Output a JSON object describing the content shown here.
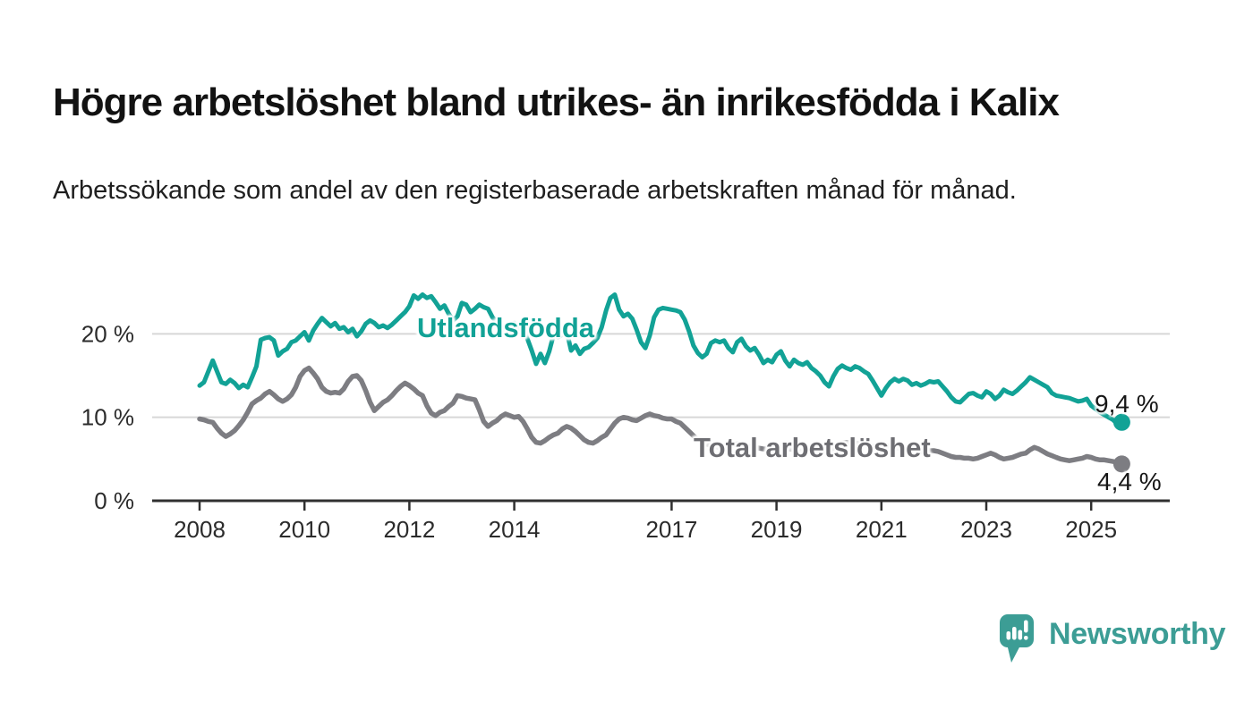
{
  "title": "Högre arbetslöshet bland utrikes- än inrikesfödda i Kalix",
  "subtitle": "Arbetssökande som andel av den registerbaserade arbetskraften månad för månad.",
  "branding": {
    "name": "Newsworthy",
    "icon": "bar-chart-speech-bubble",
    "color": "#3C9D95"
  },
  "colors": {
    "accent_teal": "#12A296",
    "series_gray": "#7D7D82",
    "gray_label": "#6E6E73",
    "axis": "#303030",
    "grid": "#D7D7D7",
    "title_text": "#121212"
  },
  "chart_data": {
    "type": "line",
    "title": "Högre arbetslöshet bland utrikes- än inrikesfödda i Kalix",
    "subtitle": "Arbetssökande som andel av den registerbaserade arbetskraften månad för månad.",
    "unit": "%",
    "grid": "horizontal",
    "x_axis": {
      "ticks": [
        2008,
        2010,
        2012,
        2014,
        2017,
        2019,
        2021,
        2023,
        2025
      ],
      "range": [
        2007.6,
        2026.4
      ]
    },
    "y_axis": {
      "ticks": [
        {
          "value": 0,
          "label": "0 %"
        },
        {
          "value": 10,
          "label": "10 %"
        },
        {
          "value": 20,
          "label": "20 %"
        }
      ],
      "range": [
        0,
        26
      ]
    },
    "series": [
      {
        "name": "Utlandsfödda",
        "color": "#12A296",
        "line_width": 5,
        "end_label": "9,4 %",
        "end_value": 9.4,
        "start_year": 2008,
        "start_month": 1,
        "frequency": "monthly",
        "values": [
          13.8,
          14.2,
          15.5,
          16.8,
          15.5,
          14.2,
          14.0,
          14.5,
          14.1,
          13.5,
          13.9,
          13.6,
          14.8,
          16.1,
          19.3,
          19.5,
          19.6,
          19.2,
          17.4,
          17.9,
          18.2,
          19.0,
          19.2,
          19.7,
          20.2,
          19.2,
          20.4,
          21.2,
          21.9,
          21.4,
          20.9,
          21.3,
          20.6,
          20.8,
          20.2,
          20.6,
          19.7,
          20.3,
          21.2,
          21.6,
          21.3,
          20.8,
          21.0,
          20.7,
          21.1,
          21.6,
          22.1,
          22.6,
          23.3,
          24.6,
          24.2,
          24.7,
          24.3,
          24.5,
          23.8,
          23.0,
          23.4,
          22.4,
          21.6,
          22.1,
          23.7,
          23.5,
          22.6,
          23.0,
          23.5,
          23.2,
          23.0,
          22.0,
          21.4,
          20.4,
          20.8,
          21.1,
          21.3,
          20.6,
          21.0,
          19.4,
          18.0,
          16.4,
          17.6,
          16.5,
          17.9,
          19.9,
          19.6,
          19.9,
          20.3,
          18.0,
          18.6,
          17.6,
          18.2,
          18.4,
          18.9,
          19.5,
          20.8,
          22.8,
          24.3,
          24.7,
          22.9,
          22.1,
          22.4,
          21.8,
          20.5,
          19.0,
          18.3,
          19.8,
          22.0,
          22.9,
          23.1,
          23.0,
          22.9,
          22.8,
          22.6,
          21.7,
          20.3,
          18.6,
          17.7,
          17.2,
          17.6,
          18.9,
          19.2,
          19.0,
          19.2,
          18.3,
          17.8,
          19.0,
          19.4,
          18.5,
          18.0,
          18.3,
          17.5,
          16.5,
          16.9,
          16.6,
          17.5,
          17.9,
          16.8,
          16.1,
          16.9,
          16.5,
          16.3,
          16.6,
          15.9,
          15.5,
          15.0,
          14.2,
          13.7,
          14.9,
          15.8,
          16.2,
          15.9,
          15.7,
          16.1,
          15.9,
          15.5,
          15.2,
          14.4,
          13.5,
          12.6,
          13.5,
          14.2,
          14.6,
          14.3,
          14.6,
          14.4,
          13.9,
          14.1,
          13.8,
          14.0,
          14.3,
          14.2,
          14.3,
          13.7,
          13.1,
          12.4,
          11.9,
          11.8,
          12.3,
          12.8,
          12.9,
          12.6,
          12.4,
          13.1,
          12.8,
          12.2,
          12.6,
          13.3,
          13.0,
          12.8,
          13.2,
          13.7,
          14.2,
          14.8,
          14.5,
          14.2,
          13.9,
          13.6,
          12.9,
          12.6,
          12.5,
          12.4,
          12.3,
          12.1,
          11.9,
          12.0,
          12.2,
          11.4,
          11.0,
          10.6,
          10.3,
          10.0,
          9.7,
          9.2,
          9.4
        ]
      },
      {
        "name": "Total arbetslöshet",
        "color": "#7D7D82",
        "line_width": 5.5,
        "end_label": "4,4 %",
        "end_value": 4.4,
        "start_year": 2008,
        "start_month": 1,
        "frequency": "monthly",
        "values": [
          9.8,
          9.7,
          9.5,
          9.4,
          8.7,
          8.1,
          7.7,
          8.0,
          8.4,
          9.0,
          9.7,
          10.6,
          11.6,
          12.0,
          12.3,
          12.8,
          13.1,
          12.7,
          12.2,
          11.9,
          12.2,
          12.7,
          13.6,
          14.9,
          15.6,
          15.9,
          15.3,
          14.6,
          13.6,
          13.1,
          12.9,
          13.0,
          12.9,
          13.4,
          14.3,
          14.9,
          15.0,
          14.4,
          13.2,
          11.8,
          10.8,
          11.3,
          11.8,
          12.1,
          12.6,
          13.2,
          13.7,
          14.1,
          13.8,
          13.4,
          12.9,
          12.6,
          11.4,
          10.5,
          10.2,
          10.6,
          10.8,
          11.3,
          11.7,
          12.6,
          12.5,
          12.3,
          12.2,
          12.1,
          10.9,
          9.5,
          8.9,
          9.3,
          9.6,
          10.1,
          10.4,
          10.2,
          10.0,
          10.1,
          9.5,
          8.6,
          7.6,
          7.0,
          6.9,
          7.2,
          7.6,
          7.9,
          8.1,
          8.6,
          8.9,
          8.7,
          8.3,
          7.8,
          7.3,
          7.0,
          6.9,
          7.2,
          7.6,
          7.9,
          8.6,
          9.3,
          9.8,
          10.0,
          9.9,
          9.7,
          9.6,
          9.9,
          10.2,
          10.4,
          10.2,
          10.1,
          9.9,
          9.8,
          9.8,
          9.5,
          9.3,
          8.8,
          8.3,
          7.8,
          7.3,
          7.0,
          6.8,
          6.6,
          6.5,
          6.4,
          6.4,
          6.5,
          6.7,
          6.8,
          6.7,
          6.6,
          6.5,
          6.4,
          6.3,
          6.2,
          6.2,
          6.3,
          6.4,
          6.4,
          6.3,
          6.2,
          6.1,
          6.0,
          6.0,
          5.9,
          5.9,
          5.9,
          5.9,
          6.0,
          6.1,
          6.3,
          6.6,
          6.9,
          7.0,
          7.0,
          6.9,
          6.8,
          6.7,
          6.6,
          6.5,
          6.5,
          6.6,
          6.6,
          6.5,
          6.4,
          6.3,
          6.2,
          6.1,
          6.0,
          5.9,
          5.9,
          5.9,
          6.0,
          6.0,
          5.9,
          5.7,
          5.5,
          5.3,
          5.2,
          5.2,
          5.1,
          5.1,
          5.0,
          5.1,
          5.3,
          5.5,
          5.7,
          5.5,
          5.2,
          5.0,
          5.1,
          5.2,
          5.4,
          5.6,
          5.7,
          6.1,
          6.4,
          6.2,
          5.9,
          5.6,
          5.4,
          5.2,
          5.0,
          4.9,
          4.8,
          4.9,
          5.0,
          5.1,
          5.3,
          5.2,
          5.0,
          4.9,
          4.9,
          4.8,
          4.7,
          4.6,
          4.4
        ]
      }
    ]
  }
}
